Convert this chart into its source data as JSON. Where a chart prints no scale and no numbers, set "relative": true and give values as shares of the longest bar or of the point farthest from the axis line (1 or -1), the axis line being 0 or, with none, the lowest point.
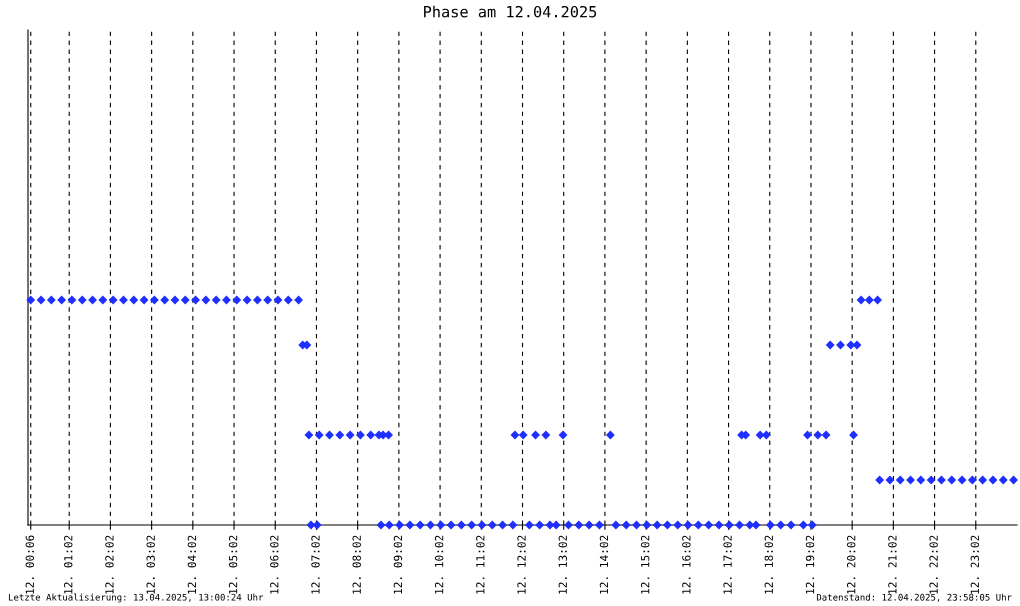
{
  "chart_data": {
    "type": "scatter",
    "title": "Phase am 12.04.2025",
    "relative": true,
    "marker": "diamond",
    "grid": "x",
    "tick_labels": "x",
    "xlim": [
      "2025-04-12T00:02",
      "2025-04-13T00:02"
    ],
    "xticks": [
      {
        "value": "2025-04-12T00:06",
        "label": "12. 00:06"
      },
      {
        "value": "2025-04-12T01:02",
        "label": "12. 01:02"
      },
      {
        "value": "2025-04-12T02:02",
        "label": "12. 02:02"
      },
      {
        "value": "2025-04-12T03:02",
        "label": "12. 03:02"
      },
      {
        "value": "2025-04-12T04:02",
        "label": "12. 04:02"
      },
      {
        "value": "2025-04-12T05:02",
        "label": "12. 05:02"
      },
      {
        "value": "2025-04-12T06:02",
        "label": "12. 06:02"
      },
      {
        "value": "2025-04-12T07:02",
        "label": "12. 07:02"
      },
      {
        "value": "2025-04-12T08:02",
        "label": "12. 08:02"
      },
      {
        "value": "2025-04-12T09:02",
        "label": "12. 09:02"
      },
      {
        "value": "2025-04-12T10:02",
        "label": "12. 10:02"
      },
      {
        "value": "2025-04-12T11:02",
        "label": "12. 11:02"
      },
      {
        "value": "2025-04-12T12:02",
        "label": "12. 12:02"
      },
      {
        "value": "2025-04-12T13:02",
        "label": "12. 13:02"
      },
      {
        "value": "2025-04-12T14:02",
        "label": "12. 14:02"
      },
      {
        "value": "2025-04-12T15:02",
        "label": "12. 15:02"
      },
      {
        "value": "2025-04-12T16:02",
        "label": "12. 16:02"
      },
      {
        "value": "2025-04-12T17:02",
        "label": "12. 17:02"
      },
      {
        "value": "2025-04-12T18:02",
        "label": "12. 18:02"
      },
      {
        "value": "2025-04-12T19:02",
        "label": "12. 19:02"
      },
      {
        "value": "2025-04-12T20:02",
        "label": "12. 20:02"
      },
      {
        "value": "2025-04-12T21:02",
        "label": "12. 21:02"
      },
      {
        "value": "2025-04-12T22:02",
        "label": "12. 22:02"
      },
      {
        "value": "2025-04-12T23:02",
        "label": "12. 23:02"
      }
    ],
    "annotations": [
      "Letzte Aktualisierung: 13.04.2025, 13:00:24 Uhr",
      "Datenstand: 12.04.2025, 23:58:05 Uhr"
    ],
    "series": [
      {
        "color": "#1f2fff",
        "x": [
          "2025-04-12T00:06",
          "2025-04-12T00:21",
          "2025-04-12T00:36",
          "2025-04-12T00:51",
          "2025-04-12T01:06",
          "2025-04-12T01:21",
          "2025-04-12T01:36",
          "2025-04-12T01:51",
          "2025-04-12T02:06",
          "2025-04-12T02:21",
          "2025-04-12T02:36",
          "2025-04-12T02:51",
          "2025-04-12T03:06",
          "2025-04-12T03:21",
          "2025-04-12T03:36",
          "2025-04-12T03:51",
          "2025-04-12T04:06",
          "2025-04-12T04:21",
          "2025-04-12T04:36",
          "2025-04-12T04:51",
          "2025-04-12T05:06",
          "2025-04-12T05:21",
          "2025-04-12T05:36",
          "2025-04-12T05:51",
          "2025-04-12T06:06",
          "2025-04-12T06:21",
          "2025-04-12T06:36",
          "2025-04-12T06:42",
          "2025-04-12T06:48",
          "2025-04-12T06:51",
          "2025-04-12T06:54",
          "2025-04-12T07:03",
          "2025-04-12T07:06",
          "2025-04-12T07:21",
          "2025-04-12T07:36",
          "2025-04-12T07:51",
          "2025-04-12T08:06",
          "2025-04-12T08:21",
          "2025-04-12T08:33",
          "2025-04-12T08:36",
          "2025-04-12T08:39",
          "2025-04-12T08:47",
          "2025-04-12T08:48",
          "2025-04-12T09:03",
          "2025-04-12T09:18",
          "2025-04-12T09:33",
          "2025-04-12T09:48",
          "2025-04-12T10:03",
          "2025-04-12T10:18",
          "2025-04-12T10:33",
          "2025-04-12T10:48",
          "2025-04-12T11:03",
          "2025-04-12T11:18",
          "2025-04-12T11:33",
          "2025-04-12T11:48",
          "2025-04-12T11:51",
          "2025-04-12T12:03",
          "2025-04-12T12:12",
          "2025-04-12T12:21",
          "2025-04-12T12:27",
          "2025-04-12T12:36",
          "2025-04-12T12:42",
          "2025-04-12T12:51",
          "2025-04-12T13:01",
          "2025-04-12T13:09",
          "2025-04-12T13:24",
          "2025-04-12T13:39",
          "2025-04-12T13:54",
          "2025-04-12T14:10",
          "2025-04-12T14:18",
          "2025-04-12T14:33",
          "2025-04-12T14:48",
          "2025-04-12T15:03",
          "2025-04-12T15:18",
          "2025-04-12T15:33",
          "2025-04-12T15:48",
          "2025-04-12T16:03",
          "2025-04-12T16:18",
          "2025-04-12T16:33",
          "2025-04-12T16:48",
          "2025-04-12T17:03",
          "2025-04-12T17:18",
          "2025-04-12T17:21",
          "2025-04-12T17:27",
          "2025-04-12T17:33",
          "2025-04-12T17:42",
          "2025-04-12T17:48",
          "2025-04-12T17:57",
          "2025-04-12T18:03",
          "2025-04-12T18:18",
          "2025-04-12T18:33",
          "2025-04-12T18:51",
          "2025-04-12T18:57",
          "2025-04-12T19:04",
          "2025-04-12T19:12",
          "2025-04-12T19:24",
          "2025-04-12T19:30",
          "2025-04-12T19:45",
          "2025-04-12T20:00",
          "2025-04-12T20:04",
          "2025-04-12T20:09",
          "2025-04-12T20:15",
          "2025-04-12T20:27",
          "2025-04-12T20:39",
          "2025-04-12T20:42",
          "2025-04-12T20:57",
          "2025-04-12T21:12",
          "2025-04-12T21:27",
          "2025-04-12T21:42",
          "2025-04-12T21:57",
          "2025-04-12T22:12",
          "2025-04-12T22:27",
          "2025-04-12T22:42",
          "2025-04-12T22:57",
          "2025-04-12T23:12",
          "2025-04-12T23:27",
          "2025-04-12T23:42",
          "2025-04-12T23:57"
        ],
        "values": [
          1,
          1,
          1,
          1,
          1,
          1,
          1,
          1,
          1,
          1,
          1,
          1,
          1,
          1,
          1,
          1,
          1,
          1,
          1,
          1,
          1,
          1,
          1,
          1,
          1,
          1,
          1,
          0.8,
          0.8,
          0.4,
          0,
          0,
          0.4,
          0.4,
          0.4,
          0.4,
          0.4,
          0.4,
          0.4,
          0,
          0.4,
          0.4,
          0,
          0,
          0,
          0,
          0,
          0,
          0,
          0,
          0,
          0,
          0,
          0,
          0,
          0.4,
          0.4,
          0,
          0.4,
          0,
          0.4,
          0,
          0,
          0.4,
          0,
          0,
          0,
          0,
          0.4,
          0,
          0,
          0,
          0,
          0,
          0,
          0,
          0,
          0,
          0,
          0,
          0,
          0,
          0.4,
          0.4,
          0,
          0,
          0.4,
          0.4,
          0,
          0,
          0,
          0,
          0.4,
          0,
          0.4,
          0.4,
          0.8,
          0.8,
          0.8,
          0.4,
          0.8,
          1,
          1,
          1,
          0.2,
          0.2,
          0.2,
          0.2,
          0.2,
          0.2,
          0.2,
          0.2,
          0.2,
          0.2,
          0.2,
          0.2,
          0.2,
          0.2
        ]
      }
    ]
  }
}
